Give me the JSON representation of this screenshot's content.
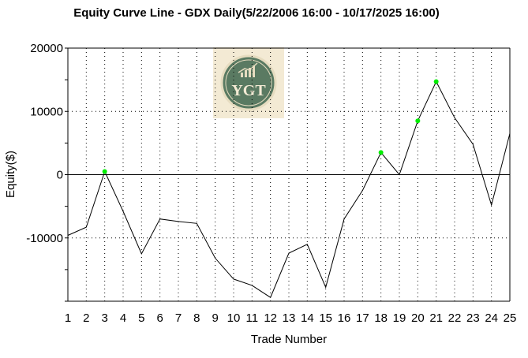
{
  "chart_data": {
    "type": "line",
    "title": "Equity Curve Line - GDX Daily(5/22/2006 16:00 - 10/17/2025 16:00)",
    "xlabel": "Trade Number",
    "ylabel": "Equity($)",
    "x": [
      1,
      2,
      3,
      4,
      5,
      6,
      7,
      8,
      9,
      10,
      11,
      12,
      13,
      14,
      15,
      16,
      17,
      18,
      19,
      20,
      21,
      22,
      23,
      24,
      25
    ],
    "y": [
      -9600,
      -8300,
      500,
      -5800,
      -12500,
      -7000,
      -7400,
      -7700,
      -13200,
      -16500,
      -17500,
      -19400,
      -12400,
      -11000,
      -17800,
      -7000,
      -2500,
      3500,
      0,
      8500,
      14700,
      9000,
      4800,
      -4800,
      6500
    ],
    "highlight_points": [
      3,
      18,
      20,
      21
    ],
    "xlim": [
      1,
      25
    ],
    "ylim": [
      -20000,
      20000
    ],
    "yticks": [
      -10000,
      0,
      10000,
      20000
    ],
    "xticks": [
      1,
      2,
      3,
      4,
      5,
      6,
      7,
      8,
      9,
      10,
      11,
      12,
      13,
      14,
      15,
      16,
      17,
      18,
      19,
      20,
      21,
      22,
      23,
      24,
      25
    ],
    "grid": true,
    "line_color": "#000000",
    "highlight_color": "#00ee00",
    "logo": {
      "text": "YGT",
      "bg_color": "#f3ead4",
      "circle_color": "#5a7a62",
      "icon": "growth-chart-icon"
    }
  }
}
